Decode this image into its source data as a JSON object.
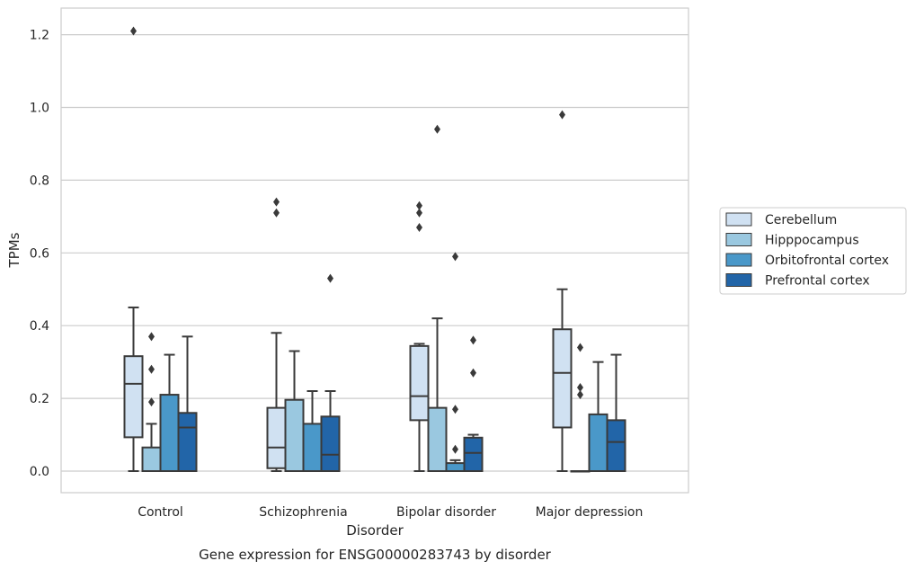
{
  "chart_data": {
    "type": "box",
    "caption": "Gene expression for ENSG00000283743 by disorder",
    "xlabel": "Disorder",
    "ylabel": "TPMs",
    "ylim": [
      -0.06,
      1.27
    ],
    "yticks": [
      "0.0",
      "0.2",
      "0.4",
      "0.6",
      "0.8",
      "1.0",
      "1.2"
    ],
    "grid": "horizontal",
    "legend_position": "right",
    "categories": [
      "Control",
      "Schizophrenia",
      "Bipolar disorder",
      "Major depression"
    ],
    "series": [
      {
        "name": "Cerebellum",
        "color": "#d0e1f2",
        "boxes": [
          {
            "whislo": 0.0,
            "q1": 0.093,
            "med": 0.24,
            "q3": 0.316,
            "whishi": 0.45,
            "fliers": [
              1.21
            ]
          },
          {
            "whislo": 0.0,
            "q1": 0.008,
            "med": 0.065,
            "q3": 0.174,
            "whishi": 0.38,
            "fliers": [
              0.74,
              0.71
            ]
          },
          {
            "whislo": 0.0,
            "q1": 0.14,
            "med": 0.206,
            "q3": 0.344,
            "whishi": 0.35,
            "fliers": [
              0.73,
              0.71,
              0.67
            ]
          },
          {
            "whislo": 0.0,
            "q1": 0.12,
            "med": 0.27,
            "q3": 0.39,
            "whishi": 0.5,
            "fliers": [
              0.98
            ]
          }
        ]
      },
      {
        "name": "Hipppocampus",
        "color": "#9ac8e0",
        "boxes": [
          {
            "whislo": 0.0,
            "q1": 0.0,
            "med": 0.0,
            "q3": 0.065,
            "whishi": 0.13,
            "fliers": [
              0.37,
              0.28,
              0.19
            ]
          },
          {
            "whislo": 0.0,
            "q1": 0.0,
            "med": 0.0,
            "q3": 0.196,
            "whishi": 0.33,
            "fliers": []
          },
          {
            "whislo": 0.0,
            "q1": 0.0,
            "med": 0.0,
            "q3": 0.174,
            "whishi": 0.42,
            "fliers": [
              0.94
            ]
          },
          {
            "whislo": 0.0,
            "q1": 0.0,
            "med": 0.0,
            "q3": 0.0,
            "whishi": 0.0,
            "fliers": [
              0.34,
              0.23,
              0.21
            ]
          }
        ]
      },
      {
        "name": "Orbitofrontal cortex",
        "color": "#4a98c9",
        "boxes": [
          {
            "whislo": 0.0,
            "q1": 0.0,
            "med": 0.0,
            "q3": 0.21,
            "whishi": 0.32,
            "fliers": []
          },
          {
            "whislo": 0.0,
            "q1": 0.0,
            "med": 0.0,
            "q3": 0.13,
            "whishi": 0.22,
            "fliers": []
          },
          {
            "whislo": 0.0,
            "q1": 0.0,
            "med": 0.0,
            "q3": 0.022,
            "whishi": 0.03,
            "fliers": [
              0.59,
              0.17,
              0.06
            ]
          },
          {
            "whislo": 0.0,
            "q1": 0.0,
            "med": 0.0,
            "q3": 0.156,
            "whishi": 0.3,
            "fliers": []
          }
        ]
      },
      {
        "name": "Prefrontal cortex",
        "color": "#2265a8",
        "boxes": [
          {
            "whislo": 0.0,
            "q1": 0.0,
            "med": 0.12,
            "q3": 0.16,
            "whishi": 0.37,
            "fliers": []
          },
          {
            "whislo": 0.0,
            "q1": 0.0,
            "med": 0.045,
            "q3": 0.15,
            "whishi": 0.22,
            "fliers": [
              0.53
            ]
          },
          {
            "whislo": 0.0,
            "q1": 0.0,
            "med": 0.05,
            "q3": 0.092,
            "whishi": 0.1,
            "fliers": [
              0.36,
              0.27
            ]
          },
          {
            "whislo": 0.0,
            "q1": 0.0,
            "med": 0.08,
            "q3": 0.14,
            "whishi": 0.32,
            "fliers": []
          }
        ]
      }
    ]
  }
}
